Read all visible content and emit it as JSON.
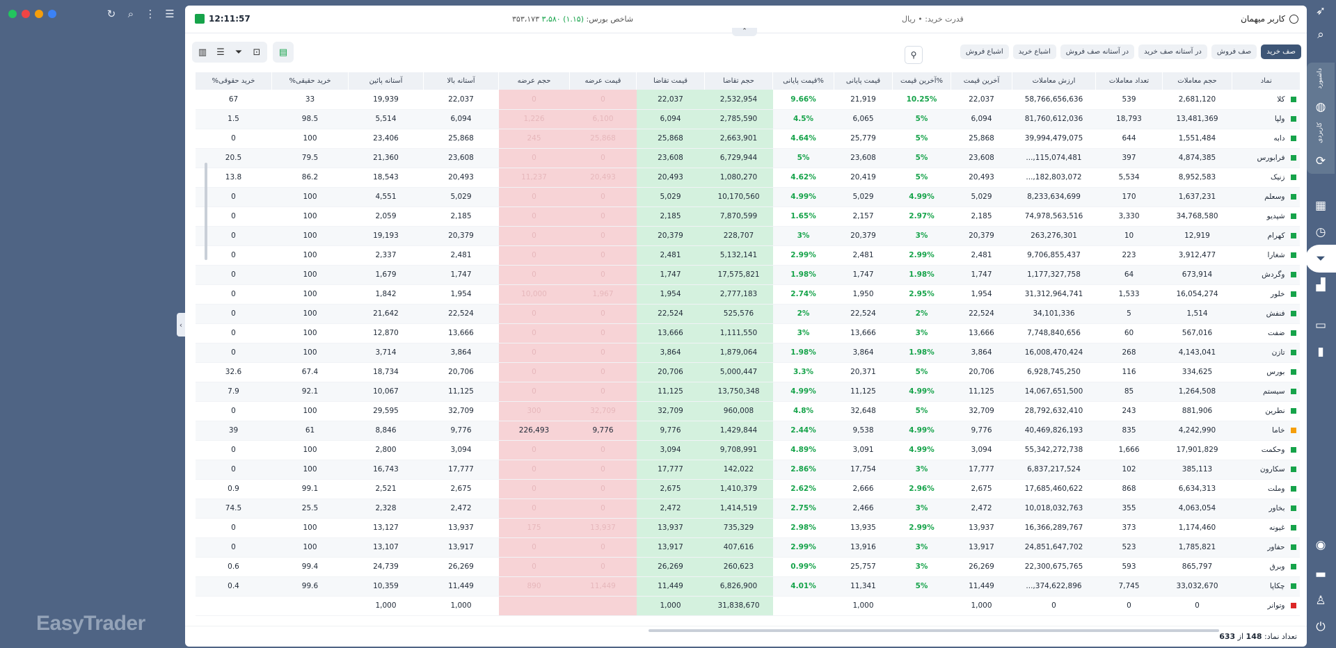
{
  "brand": "EasyTrader",
  "window": {
    "dot_colors": [
      "#22c55e",
      "#ef4444",
      "#f59e0b",
      "#3b82f6"
    ]
  },
  "header": {
    "clock": "12:11:57",
    "index_label": "شاخص بورس:",
    "index_change": "(۱.۱۵) ۳،۵۸۰",
    "index_value": "۳۵۳،۱۷۳",
    "buy_power": "قدرت خرید: • ریال",
    "user": "کاربر میهمان"
  },
  "tabs": [
    {
      "label": "صف خرید",
      "active": true
    },
    {
      "label": "صف فروش",
      "active": false
    },
    {
      "label": "در آستانه صف خرید",
      "active": false
    },
    {
      "label": "در آستانه صف فروش",
      "active": false
    },
    {
      "label": "اشباع خرید",
      "active": false
    },
    {
      "label": "اشباع فروش",
      "active": false
    }
  ],
  "columns": [
    "نماد",
    "حجم معاملات",
    "تعداد معاملات",
    "ارزش معاملات",
    "آخرین قیمت",
    "%آخرین قیمت",
    "قیمت پایانی",
    "%قیمت پایانی",
    "حجم تقاضا",
    "قیمت تقاضا",
    "قیمت عرضه",
    "حجم عرضه",
    "آستانه بالا",
    "آستانه پائین",
    "خرید حقیقی%",
    "خرید حقوقی%"
  ],
  "rows": [
    [
      "کلا",
      "2,681,120",
      "539",
      "58,766,656,636",
      "22,037",
      "10.25%",
      "21,919",
      "9.66%",
      "2,532,954",
      "22,037",
      "0",
      "0",
      "22,037",
      "19,939",
      "33",
      "67"
    ],
    [
      "ولپا",
      "13,481,369",
      "18,793",
      "81,760,612,036",
      "6,094",
      "5%",
      "6,065",
      "4.5%",
      "2,785,590",
      "6,094",
      "6,100",
      "1,226",
      "6,094",
      "5,514",
      "98.5",
      "1.5"
    ],
    [
      "دابه",
      "1,551,484",
      "644",
      "39,994,479,075",
      "25,868",
      "5%",
      "25,779",
      "4.64%",
      "2,663,901",
      "25,868",
      "25,868",
      "245",
      "25,868",
      "23,406",
      "100",
      "0"
    ],
    [
      "فرابورس",
      "4,874,385",
      "397",
      "115,074,481,...",
      "23,608",
      "5%",
      "23,608",
      "5%",
      "6,729,944",
      "23,608",
      "0",
      "0",
      "23,608",
      "21,360",
      "79.5",
      "20.5"
    ],
    [
      "زنیک",
      "8,952,583",
      "5,534",
      "182,803,072,...",
      "20,493",
      "5%",
      "20,419",
      "4.62%",
      "1,080,270",
      "20,493",
      "20,493",
      "11,237",
      "20,493",
      "18,543",
      "86.2",
      "13.8"
    ],
    [
      "وسعلم",
      "1,637,231",
      "170",
      "8,233,634,699",
      "5,029",
      "4.99%",
      "5,029",
      "4.99%",
      "10,170,560",
      "5,029",
      "0",
      "0",
      "5,029",
      "4,551",
      "100",
      "0"
    ],
    [
      "شپدیو",
      "34,768,580",
      "3,330",
      "74,978,563,516",
      "2,185",
      "2.97%",
      "2,157",
      "1.65%",
      "7,870,599",
      "2,185",
      "0",
      "0",
      "2,185",
      "2,059",
      "100",
      "0"
    ],
    [
      "کهرام",
      "12,919",
      "10",
      "263,276,301",
      "20,379",
      "3%",
      "20,379",
      "3%",
      "228,707",
      "20,379",
      "0",
      "0",
      "20,379",
      "19,193",
      "100",
      "0"
    ],
    [
      "شغارا",
      "3,912,477",
      "223",
      "9,706,855,437",
      "2,481",
      "2.99%",
      "2,481",
      "2.99%",
      "5,132,141",
      "2,481",
      "0",
      "0",
      "2,481",
      "2,337",
      "100",
      "0"
    ],
    [
      "وگردش",
      "673,914",
      "64",
      "1,177,327,758",
      "1,747",
      "1.98%",
      "1,747",
      "1.98%",
      "17,575,821",
      "1,747",
      "0",
      "0",
      "1,747",
      "1,679",
      "100",
      "0"
    ],
    [
      "خلور",
      "16,054,274",
      "1,533",
      "31,312,964,741",
      "1,954",
      "2.95%",
      "1,950",
      "2.74%",
      "2,777,183",
      "1,954",
      "1,967",
      "10,000",
      "1,954",
      "1,842",
      "100",
      "0"
    ],
    [
      "فنفش",
      "1,514",
      "5",
      "34,101,336",
      "22,524",
      "2%",
      "22,524",
      "2%",
      "525,576",
      "22,524",
      "0",
      "0",
      "22,524",
      "21,642",
      "100",
      "0"
    ],
    [
      "ضفت",
      "567,016",
      "60",
      "7,748,840,656",
      "13,666",
      "3%",
      "13,666",
      "3%",
      "1,111,550",
      "13,666",
      "0",
      "0",
      "13,666",
      "12,870",
      "100",
      "0"
    ],
    [
      "تازن",
      "4,143,041",
      "268",
      "16,008,470,424",
      "3,864",
      "1.98%",
      "3,864",
      "1.98%",
      "1,879,064",
      "3,864",
      "0",
      "0",
      "3,864",
      "3,714",
      "100",
      "0"
    ],
    [
      "بورس",
      "334,625",
      "116",
      "6,928,745,250",
      "20,706",
      "5%",
      "20,371",
      "3.3%",
      "5,000,447",
      "20,706",
      "0",
      "0",
      "20,706",
      "18,734",
      "67.4",
      "32.6"
    ],
    [
      "سیستم",
      "1,264,508",
      "85",
      "14,067,651,500",
      "11,125",
      "4.99%",
      "11,125",
      "4.99%",
      "13,750,348",
      "11,125",
      "0",
      "0",
      "11,125",
      "10,067",
      "92.1",
      "7.9"
    ],
    [
      "نطرین",
      "881,906",
      "243",
      "28,792,632,410",
      "32,709",
      "5%",
      "32,648",
      "4.8%",
      "960,008",
      "32,709",
      "32,709",
      "300",
      "32,709",
      "29,595",
      "100",
      "0"
    ],
    [
      "خاما",
      "4,242,990",
      "835",
      "40,469,826,193",
      "9,776",
      "4.99%",
      "9,538",
      "2.44%",
      "1,429,844",
      "9,776",
      "9,776",
      "226,493",
      "9,776",
      "8,846",
      "61",
      "39"
    ],
    [
      "وحکمت",
      "17,901,829",
      "1,666",
      "55,342,272,738",
      "3,094",
      "4.99%",
      "3,091",
      "4.89%",
      "9,708,991",
      "3,094",
      "0",
      "0",
      "3,094",
      "2,800",
      "100",
      "0"
    ],
    [
      "سکارون",
      "385,113",
      "102",
      "6,837,217,524",
      "17,777",
      "3%",
      "17,754",
      "2.86%",
      "142,022",
      "17,777",
      "0",
      "0",
      "17,777",
      "16,743",
      "100",
      "0"
    ],
    [
      "وملت",
      "6,634,313",
      "868",
      "17,685,460,622",
      "2,675",
      "2.96%",
      "2,666",
      "2.62%",
      "1,410,379",
      "2,675",
      "0",
      "0",
      "2,675",
      "2,521",
      "99.1",
      "0.9"
    ],
    [
      "بخاور",
      "4,063,054",
      "355",
      "10,018,032,763",
      "2,472",
      "3%",
      "2,466",
      "2.75%",
      "1,414,519",
      "2,472",
      "0",
      "0",
      "2,472",
      "2,328",
      "25.5",
      "74.5"
    ],
    [
      "غیونه",
      "1,174,460",
      "373",
      "16,366,289,767",
      "13,937",
      "2.99%",
      "13,935",
      "2.98%",
      "735,329",
      "13,937",
      "13,937",
      "175",
      "13,937",
      "13,127",
      "100",
      "0"
    ],
    [
      "حفاور",
      "1,785,821",
      "523",
      "24,851,647,702",
      "13,917",
      "3%",
      "13,916",
      "2.99%",
      "407,616",
      "13,917",
      "0",
      "0",
      "13,917",
      "13,107",
      "100",
      "0"
    ],
    [
      "وبرق",
      "865,797",
      "593",
      "22,300,675,765",
      "26,269",
      "3%",
      "25,757",
      "0.99%",
      "260,623",
      "26,269",
      "0",
      "0",
      "26,269",
      "24,739",
      "99.4",
      "0.6"
    ],
    [
      "چکاپا",
      "33,032,670",
      "7,745",
      "374,622,896,...",
      "11,449",
      "5%",
      "11,341",
      "4.01%",
      "6,826,900",
      "11,449",
      "11,449",
      "890",
      "11,449",
      "10,359",
      "99.6",
      "0.4"
    ],
    [
      "وتوانر",
      "0",
      "0",
      "0",
      "1,000",
      "",
      "1,000",
      "",
      "31,838,670",
      "1,000",
      "",
      "",
      "1,000",
      "1,000",
      "",
      ""
    ]
  ],
  "row_marker_colors": [
    "#16a34a",
    "#16a34a",
    "#16a34a",
    "#16a34a",
    "#16a34a",
    "#16a34a",
    "#16a34a",
    "#16a34a",
    "#16a34a",
    "#16a34a",
    "#16a34a",
    "#16a34a",
    "#16a34a",
    "#16a34a",
    "#16a34a",
    "#16a34a",
    "#16a34a",
    "#f59e0b",
    "#16a34a",
    "#16a34a",
    "#16a34a",
    "#16a34a",
    "#16a34a",
    "#16a34a",
    "#16a34a",
    "#16a34a",
    "#dc2626"
  ],
  "strong_supply_rows": [
    17
  ],
  "footer": {
    "count_label": "تعداد نماد:",
    "count_shown": "148",
    "count_sep": "از",
    "count_total": "633"
  },
  "right_sidebar": {
    "panel_label_1": "داشبورد",
    "panel_label_2": "کاربردی"
  }
}
